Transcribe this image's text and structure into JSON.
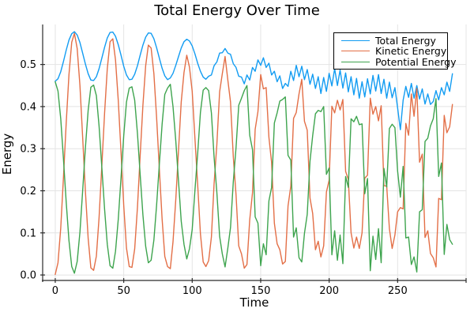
{
  "chart": {
    "title": "Total Energy Over Time",
    "xlabel": "Time",
    "ylabel": "Energy"
  },
  "chart_data": {
    "type": "line",
    "title": "Total Energy Over Time",
    "xlabel": "Time",
    "ylabel": "Energy",
    "xlim": [
      -9.2,
      300
    ],
    "ylim": [
      -0.013,
      0.595
    ],
    "grid": true,
    "legend_position": "top-right",
    "axis_color": "#2b2b2b",
    "grid_color": "#e4e4e4",
    "xticks": {
      "values": [
        0,
        50,
        100,
        150,
        200,
        250,
        300
      ],
      "labels": [
        "0",
        "50",
        "100",
        "150",
        "200",
        "250",
        ""
      ]
    },
    "yticks": {
      "values": [
        0,
        0.1,
        0.2,
        0.3,
        0.4,
        0.5
      ],
      "labels": [
        "0.0",
        "0.1",
        "0.2",
        "0.3",
        "0.4",
        "0.5"
      ]
    },
    "x": [
      0,
      2,
      4,
      6,
      8,
      10,
      12,
      14,
      16,
      18,
      20,
      22,
      24,
      26,
      28,
      30,
      32,
      34,
      36,
      38,
      40,
      42,
      44,
      46,
      48,
      50,
      52,
      54,
      56,
      58,
      60,
      62,
      64,
      66,
      68,
      70,
      72,
      74,
      76,
      78,
      80,
      82,
      84,
      86,
      88,
      90,
      92,
      94,
      96,
      98,
      100,
      102,
      104,
      106,
      108,
      110,
      112,
      114,
      116,
      118,
      120,
      122,
      124,
      126,
      128,
      130,
      132,
      134,
      136,
      138,
      140,
      142,
      144,
      146,
      148,
      150,
      152,
      154,
      156,
      158,
      160,
      162,
      164,
      166,
      168,
      170,
      172,
      174,
      176,
      178,
      180,
      182,
      184,
      186,
      188,
      190,
      192,
      194,
      196,
      198,
      200,
      202,
      204,
      206,
      208,
      210,
      212,
      214,
      216,
      218,
      220,
      222,
      224,
      226,
      228,
      230,
      232,
      234,
      236,
      238,
      240,
      242,
      244,
      246,
      248,
      250,
      252,
      254,
      256,
      258,
      260,
      262,
      264,
      266,
      268,
      270,
      272,
      274,
      276,
      278,
      280,
      282,
      284,
      286,
      288,
      290
    ],
    "series": [
      {
        "name": "Total Energy",
        "color": "#129CF2",
        "values": [
          0.46,
          0.466,
          0.483,
          0.507,
          0.534,
          0.558,
          0.573,
          0.578,
          0.57,
          0.552,
          0.527,
          0.501,
          0.478,
          0.463,
          0.462,
          0.471,
          0.49,
          0.515,
          0.541,
          0.563,
          0.576,
          0.577,
          0.567,
          0.547,
          0.522,
          0.496,
          0.475,
          0.464,
          0.465,
          0.477,
          0.497,
          0.522,
          0.546,
          0.565,
          0.575,
          0.574,
          0.561,
          0.54,
          0.515,
          0.491,
          0.473,
          0.464,
          0.468,
          0.479,
          0.498,
          0.519,
          0.539,
          0.554,
          0.56,
          0.556,
          0.544,
          0.525,
          0.503,
          0.484,
          0.47,
          0.465,
          0.472,
          0.475,
          0.497,
          0.506,
          0.527,
          0.528,
          0.538,
          0.527,
          0.524,
          0.502,
          0.493,
          0.472,
          0.47,
          0.454,
          0.475,
          0.463,
          0.493,
          0.484,
          0.511,
          0.498,
          0.516,
          0.493,
          0.503,
          0.475,
          0.484,
          0.459,
          0.473,
          0.443,
          0.455,
          0.448,
          0.484,
          0.462,
          0.498,
          0.471,
          0.496,
          0.464,
          0.488,
          0.453,
          0.477,
          0.443,
          0.471,
          0.431,
          0.469,
          0.436,
          0.479,
          0.449,
          0.49,
          0.45,
          0.487,
          0.444,
          0.48,
          0.435,
          0.471,
          0.428,
          0.467,
          0.42,
          0.459,
          0.423,
          0.466,
          0.43,
          0.474,
          0.437,
          0.476,
          0.431,
          0.465,
          0.42,
          0.458,
          0.421,
          0.445,
          0.397,
          0.345,
          0.415,
          0.448,
          0.422,
          0.455,
          0.42,
          0.45,
          0.418,
          0.442,
          0.406,
          0.43,
          0.405,
          0.412,
          0.438,
          0.416,
          0.445,
          0.428,
          0.458,
          0.436,
          0.478
        ]
      },
      {
        "name": "Kinetic Energy",
        "color": "#E36F47",
        "values": [
          0.001,
          0.029,
          0.112,
          0.231,
          0.361,
          0.476,
          0.553,
          0.574,
          0.538,
          0.45,
          0.328,
          0.199,
          0.087,
          0.017,
          0.011,
          0.045,
          0.136,
          0.259,
          0.385,
          0.49,
          0.554,
          0.561,
          0.511,
          0.415,
          0.291,
          0.166,
          0.064,
          0.02,
          0.018,
          0.062,
          0.161,
          0.283,
          0.403,
          0.497,
          0.546,
          0.539,
          0.478,
          0.375,
          0.252,
          0.133,
          0.044,
          0.02,
          0.015,
          0.079,
          0.179,
          0.297,
          0.411,
          0.481,
          0.522,
          0.494,
          0.436,
          0.323,
          0.215,
          0.098,
          0.031,
          0.02,
          0.034,
          0.09,
          0.217,
          0.31,
          0.435,
          0.478,
          0.519,
          0.463,
          0.411,
          0.281,
          0.19,
          0.069,
          0.05,
          0.016,
          0.025,
          0.131,
          0.195,
          0.346,
          0.388,
          0.476,
          0.442,
          0.445,
          0.327,
          0.267,
          0.123,
          0.074,
          0.06,
          0.026,
          0.032,
          0.164,
          0.211,
          0.372,
          0.386,
          0.43,
          0.465,
          0.365,
          0.344,
          0.183,
          0.146,
          0.06,
          0.08,
          0.043,
          0.069,
          0.197,
          0.225,
          0.401,
          0.385,
          0.415,
          0.392,
          0.417,
          0.246,
          0.227,
          0.1,
          0.064,
          0.09,
          0.063,
          0.1,
          0.23,
          0.237,
          0.42,
          0.382,
          0.4,
          0.366,
          0.402,
          0.212,
          0.211,
          0.11,
          0.063,
          0.095,
          0.15,
          0.16,
          0.157,
          0.36,
          0.332,
          0.43,
          0.377,
          0.443,
          0.268,
          0.287,
          0.089,
          0.105,
          0.051,
          0.041,
          0.019,
          0.182,
          0.179,
          0.379,
          0.338,
          0.352,
          0.405
        ]
      },
      {
        "name": "Potential Energy",
        "color": "#3EA44E",
        "values": [
          0.459,
          0.437,
          0.371,
          0.276,
          0.173,
          0.082,
          0.02,
          0.004,
          0.032,
          0.102,
          0.199,
          0.302,
          0.391,
          0.446,
          0.451,
          0.426,
          0.354,
          0.256,
          0.156,
          0.073,
          0.022,
          0.016,
          0.056,
          0.132,
          0.231,
          0.33,
          0.411,
          0.444,
          0.447,
          0.415,
          0.336,
          0.239,
          0.143,
          0.068,
          0.029,
          0.035,
          0.083,
          0.165,
          0.263,
          0.358,
          0.429,
          0.444,
          0.453,
          0.4,
          0.319,
          0.222,
          0.128,
          0.073,
          0.038,
          0.062,
          0.108,
          0.202,
          0.288,
          0.386,
          0.439,
          0.445,
          0.438,
          0.385,
          0.28,
          0.196,
          0.092,
          0.05,
          0.019,
          0.064,
          0.113,
          0.221,
          0.303,
          0.403,
          0.42,
          0.438,
          0.45,
          0.332,
          0.298,
          0.138,
          0.123,
          0.022,
          0.074,
          0.048,
          0.176,
          0.208,
          0.361,
          0.385,
          0.413,
          0.417,
          0.423,
          0.284,
          0.273,
          0.09,
          0.112,
          0.041,
          0.031,
          0.099,
          0.144,
          0.27,
          0.331,
          0.383,
          0.391,
          0.388,
          0.4,
          0.239,
          0.254,
          0.048,
          0.105,
          0.035,
          0.095,
          0.027,
          0.234,
          0.208,
          0.371,
          0.364,
          0.377,
          0.357,
          0.359,
          0.193,
          0.229,
          0.01,
          0.092,
          0.037,
          0.11,
          0.029,
          0.253,
          0.209,
          0.348,
          0.358,
          0.35,
          0.247,
          0.185,
          0.258,
          0.088,
          0.09,
          0.025,
          0.043,
          0.007,
          0.15,
          0.155,
          0.317,
          0.325,
          0.354,
          0.371,
          0.419,
          0.234,
          0.266,
          0.049,
          0.12,
          0.084,
          0.073
        ]
      }
    ]
  }
}
